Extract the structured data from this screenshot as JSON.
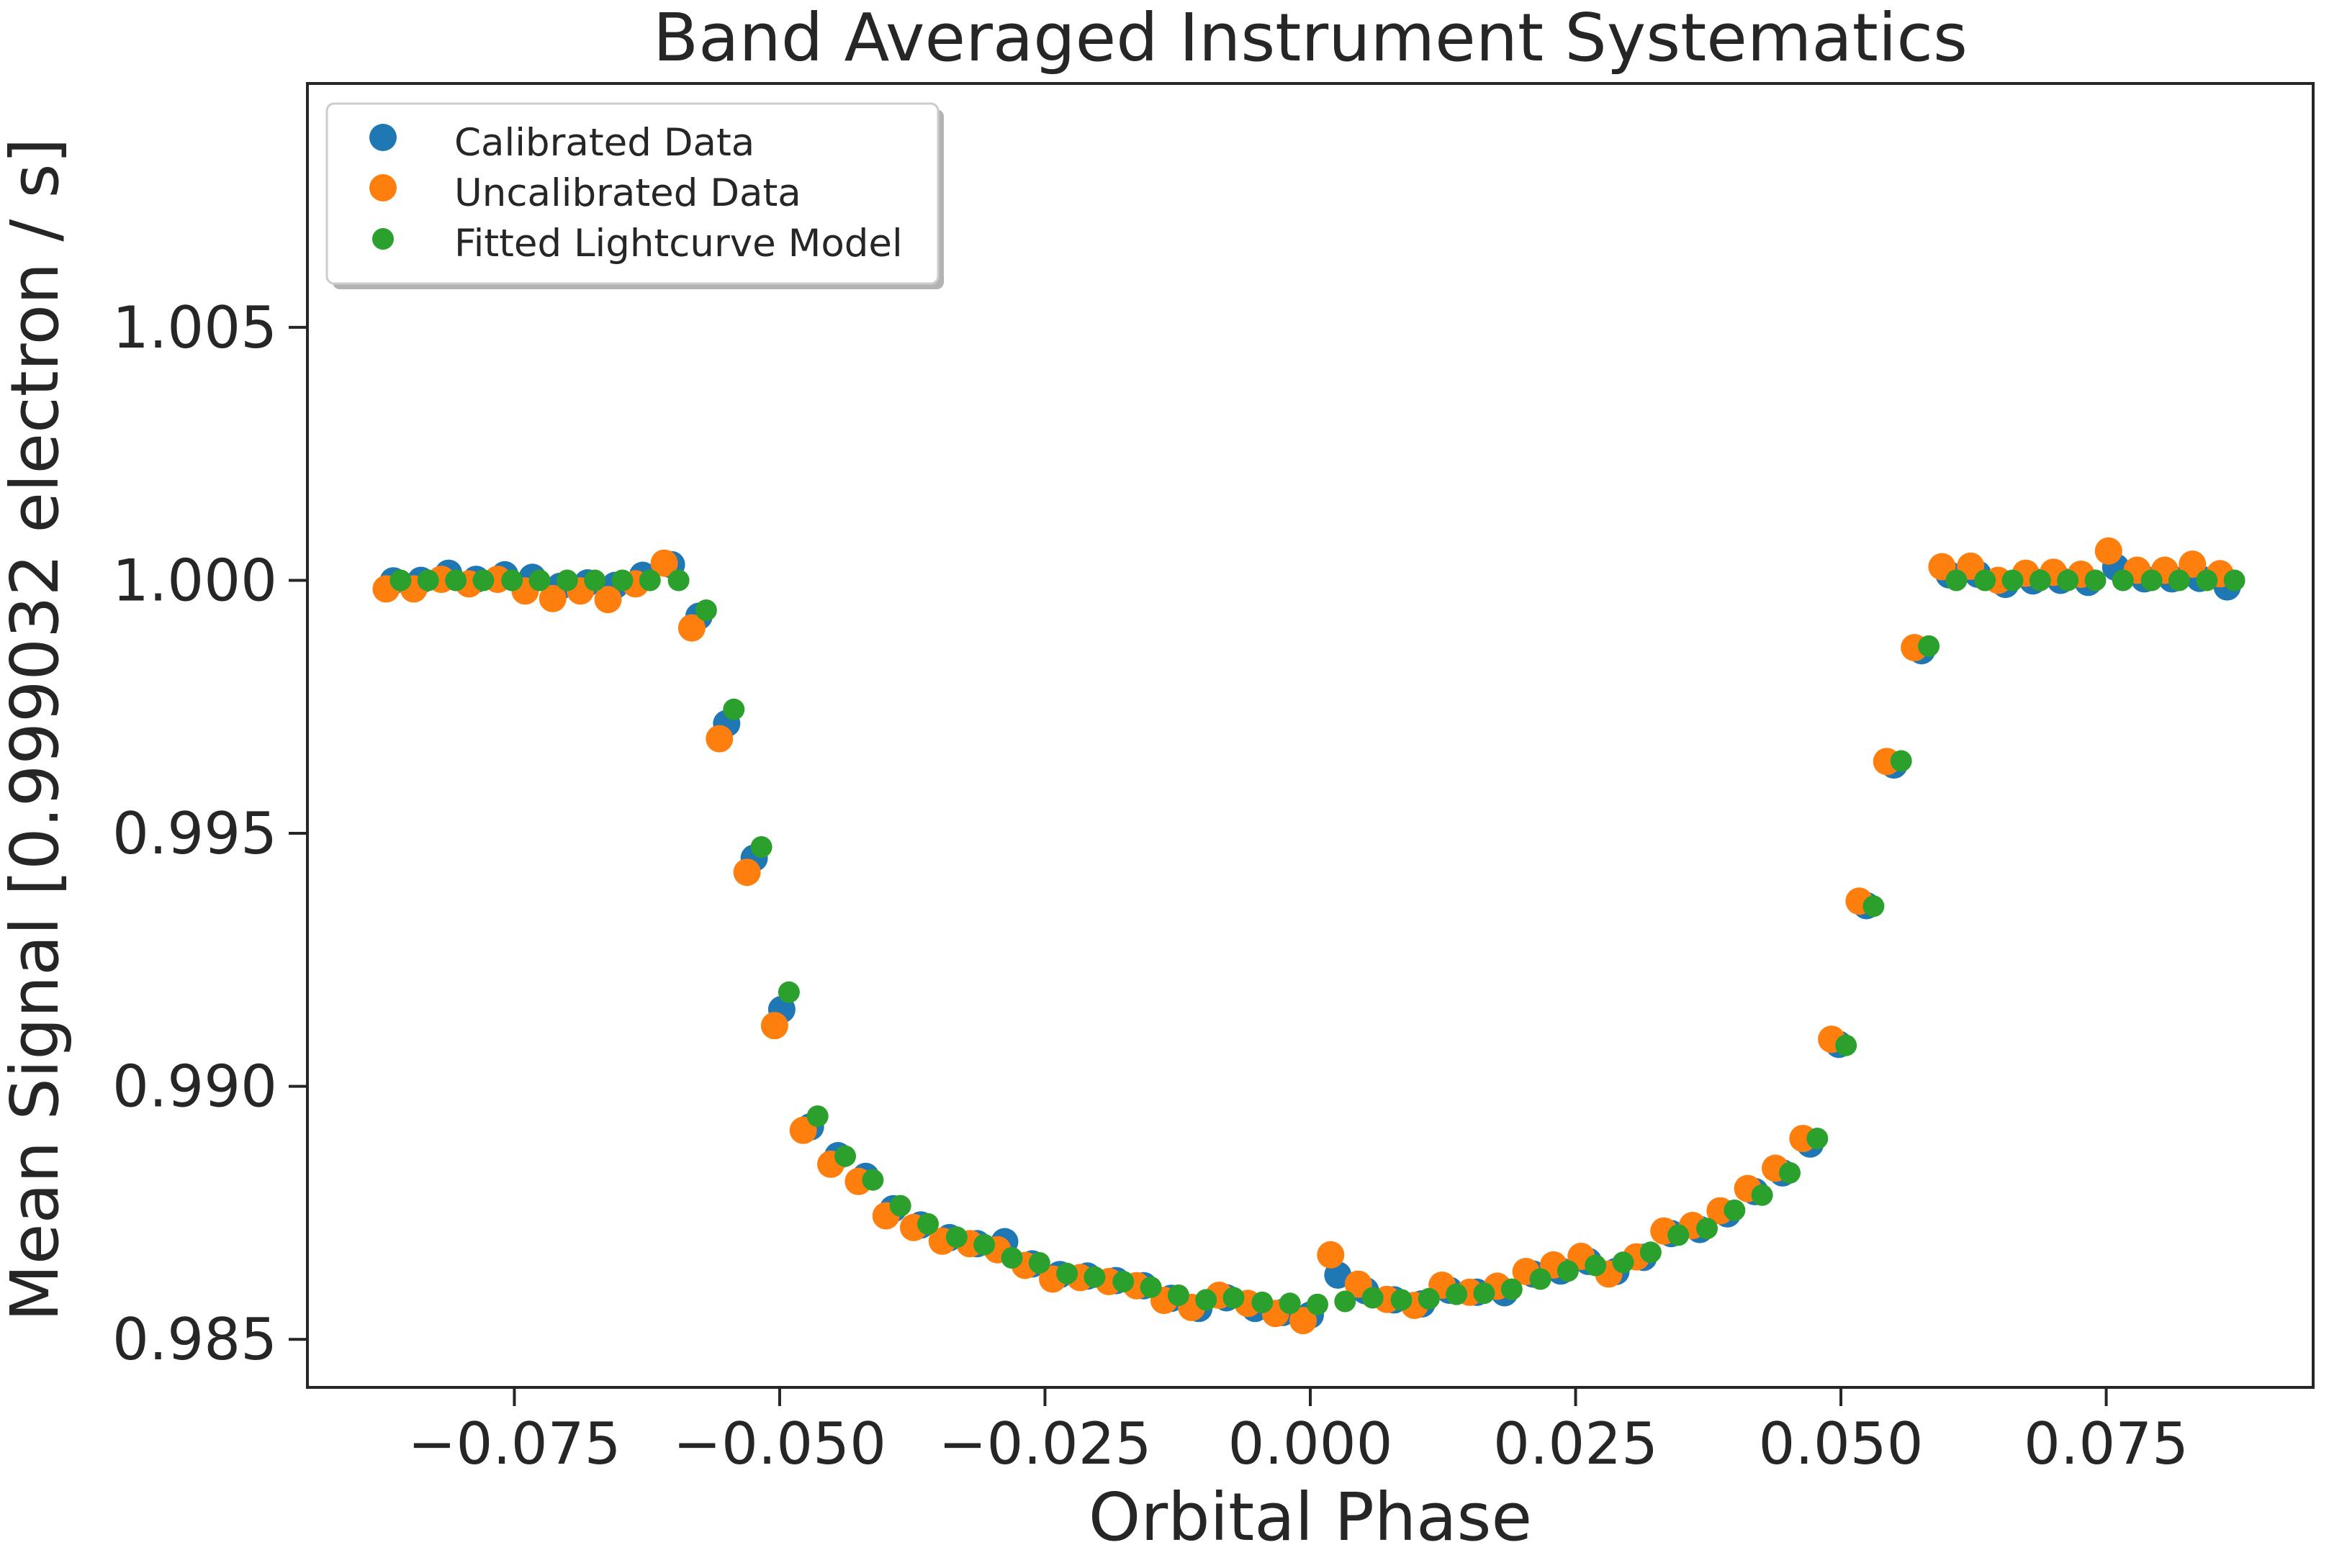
{
  "chart_data": {
    "type": "scatter",
    "title": "Band Averaged Instrument Systematics",
    "xlabel": "Orbital Phase",
    "ylabel": "Mean Signal [0.999032 electron / s]",
    "xlim": [
      -0.0945,
      0.0945
    ],
    "ylim": [
      0.98405,
      1.00982
    ],
    "xticks": [
      -0.075,
      -0.05,
      -0.025,
      0.0,
      0.025,
      0.05,
      0.075
    ],
    "xtick_labels": [
      "−0.075",
      "−0.050",
      "−0.025",
      "0.000",
      "0.025",
      "0.050",
      "0.075"
    ],
    "yticks": [
      0.985,
      0.99,
      0.995,
      1.0,
      1.005
    ],
    "ytick_labels": [
      "0.985",
      "0.990",
      "0.995",
      "1.000",
      "1.005"
    ],
    "grid": false,
    "legend_position": "top-left",
    "x": [
      -0.0864,
      -0.0838,
      -0.0812,
      -0.0786,
      -0.0759,
      -0.0733,
      -0.0707,
      -0.0681,
      -0.0655,
      -0.0629,
      -0.0602,
      -0.0576,
      -0.055,
      -0.0524,
      -0.0498,
      -0.0471,
      -0.0445,
      -0.0419,
      -0.0393,
      -0.0367,
      -0.034,
      -0.0314,
      -0.0288,
      -0.0262,
      -0.0236,
      -0.021,
      -0.0183,
      -0.0157,
      -0.0131,
      -0.0105,
      -0.0079,
      -0.0052,
      -0.0026,
      0.0,
      0.0026,
      0.0052,
      0.0079,
      0.0105,
      0.0131,
      0.0157,
      0.0183,
      0.021,
      0.0236,
      0.0262,
      0.0288,
      0.0314,
      0.034,
      0.0367,
      0.0393,
      0.0419,
      0.0445,
      0.0471,
      0.0498,
      0.0524,
      0.055,
      0.0576,
      0.0602,
      0.0629,
      0.0655,
      0.0681,
      0.0707,
      0.0733,
      0.0759,
      0.0786,
      0.0812,
      0.0838,
      0.0864
    ],
    "series": [
      {
        "name": "Calibrated Data",
        "color": "#1f77b4",
        "values": [
          0.99999,
          1.0,
          1.00014,
          1.00002,
          1.00011,
          1.00006,
          0.99988,
          0.99995,
          0.9999,
          1.0001,
          1.00031,
          0.99929,
          0.99717,
          0.99451,
          0.99152,
          0.9892,
          0.98863,
          0.98822,
          0.98758,
          0.98726,
          0.98701,
          0.98689,
          0.98693,
          0.98649,
          0.98628,
          0.98625,
          0.98616,
          0.98606,
          0.98581,
          0.98561,
          0.98582,
          0.98561,
          0.98553,
          0.98548,
          0.98627,
          0.98596,
          0.98578,
          0.9857,
          0.98597,
          0.98593,
          0.98592,
          0.98629,
          0.98635,
          0.98654,
          0.98634,
          0.98662,
          0.98709,
          0.98717,
          0.98748,
          0.98792,
          0.98829,
          0.98886,
          0.99083,
          0.99357,
          0.99635,
          0.99861,
          1.00011,
          1.00012,
          0.99992,
          0.99999,
          1.0,
          0.99996,
          1.00026,
          1.00003,
          1.00003,
          1.00004,
          0.99987
        ]
      },
      {
        "name": "Uncalibrated Data",
        "color": "#ff7f0e",
        "values": [
          0.99983,
          0.99983,
          1.00002,
          0.99993,
          1.00002,
          0.99979,
          0.99964,
          0.99979,
          0.99962,
          0.99993,
          1.00034,
          0.99906,
          0.99687,
          0.99423,
          0.9912,
          0.98913,
          0.98846,
          0.98812,
          0.98744,
          0.98721,
          0.98694,
          0.98689,
          0.98677,
          0.98646,
          0.98619,
          0.98622,
          0.98614,
          0.98606,
          0.98577,
          0.98563,
          0.98587,
          0.98571,
          0.98551,
          0.98537,
          0.98667,
          0.98609,
          0.98579,
          0.98567,
          0.98607,
          0.98593,
          0.98605,
          0.98634,
          0.98647,
          0.98664,
          0.98629,
          0.98663,
          0.98714,
          0.98725,
          0.98754,
          0.98798,
          0.98838,
          0.98897,
          0.99093,
          0.99366,
          0.99642,
          0.99867,
          1.00027,
          1.00028,
          1.0,
          1.00014,
          1.00016,
          1.00012,
          1.00058,
          1.0002,
          1.0002,
          1.00032,
          1.00013
        ]
      },
      {
        "name": "Fitted Lightcurve Model",
        "color": "#2ca02c",
        "values": [
          1.0,
          1.0,
          1.0,
          1.0,
          1.0,
          1.0,
          1.0,
          1.0,
          1.0,
          1.0,
          1.0,
          0.99941,
          0.99745,
          0.99473,
          0.99186,
          0.98941,
          0.98862,
          0.98815,
          0.98764,
          0.98728,
          0.98702,
          0.98687,
          0.98661,
          0.98651,
          0.9863,
          0.98623,
          0.98614,
          0.98603,
          0.98587,
          0.98578,
          0.98582,
          0.98573,
          0.98571,
          0.98569,
          0.98575,
          0.98582,
          0.98578,
          0.9858,
          0.98589,
          0.98591,
          0.98599,
          0.98619,
          0.98635,
          0.98646,
          0.98652,
          0.98672,
          0.98706,
          0.98719,
          0.98755,
          0.98785,
          0.98829,
          0.98897,
          0.99081,
          0.99356,
          0.99643,
          0.9987,
          1.0,
          1.0,
          1.0,
          1.0,
          1.0,
          1.0,
          1.0,
          1.0,
          1.0,
          1.0,
          1.0
        ]
      }
    ]
  }
}
